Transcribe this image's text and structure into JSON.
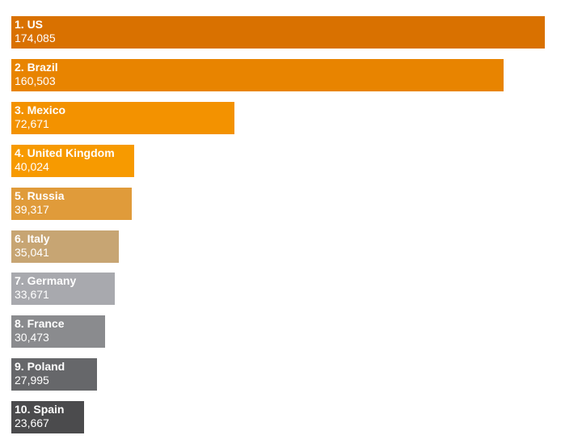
{
  "chart_data": {
    "type": "bar",
    "orientation": "horizontal",
    "categories": [
      "1. US",
      "2. Brazil",
      "3. Mexico",
      "4. United Kingdom",
      "5. Russia",
      "6. Italy",
      "7. Germany",
      "8. France",
      "9. Poland",
      "10. Spain"
    ],
    "values": [
      174085,
      160503,
      72671,
      40024,
      39317,
      35041,
      33671,
      30473,
      27995,
      23667
    ],
    "value_labels": [
      "174,085",
      "160,503",
      "72,671",
      "40,024",
      "39,317",
      "35,041",
      "33,671",
      "30,473",
      "27,995",
      "23,667"
    ],
    "colors": [
      "#d97100",
      "#e88400",
      "#f39200",
      "#f79a00",
      "#e09b3a",
      "#c7a573",
      "#a8a9ae",
      "#8a8b8e",
      "#66676a",
      "#4b4b4d"
    ],
    "title": "",
    "xlabel": "",
    "ylabel": "",
    "axes_visible": false,
    "grid": false,
    "legend": "none"
  }
}
